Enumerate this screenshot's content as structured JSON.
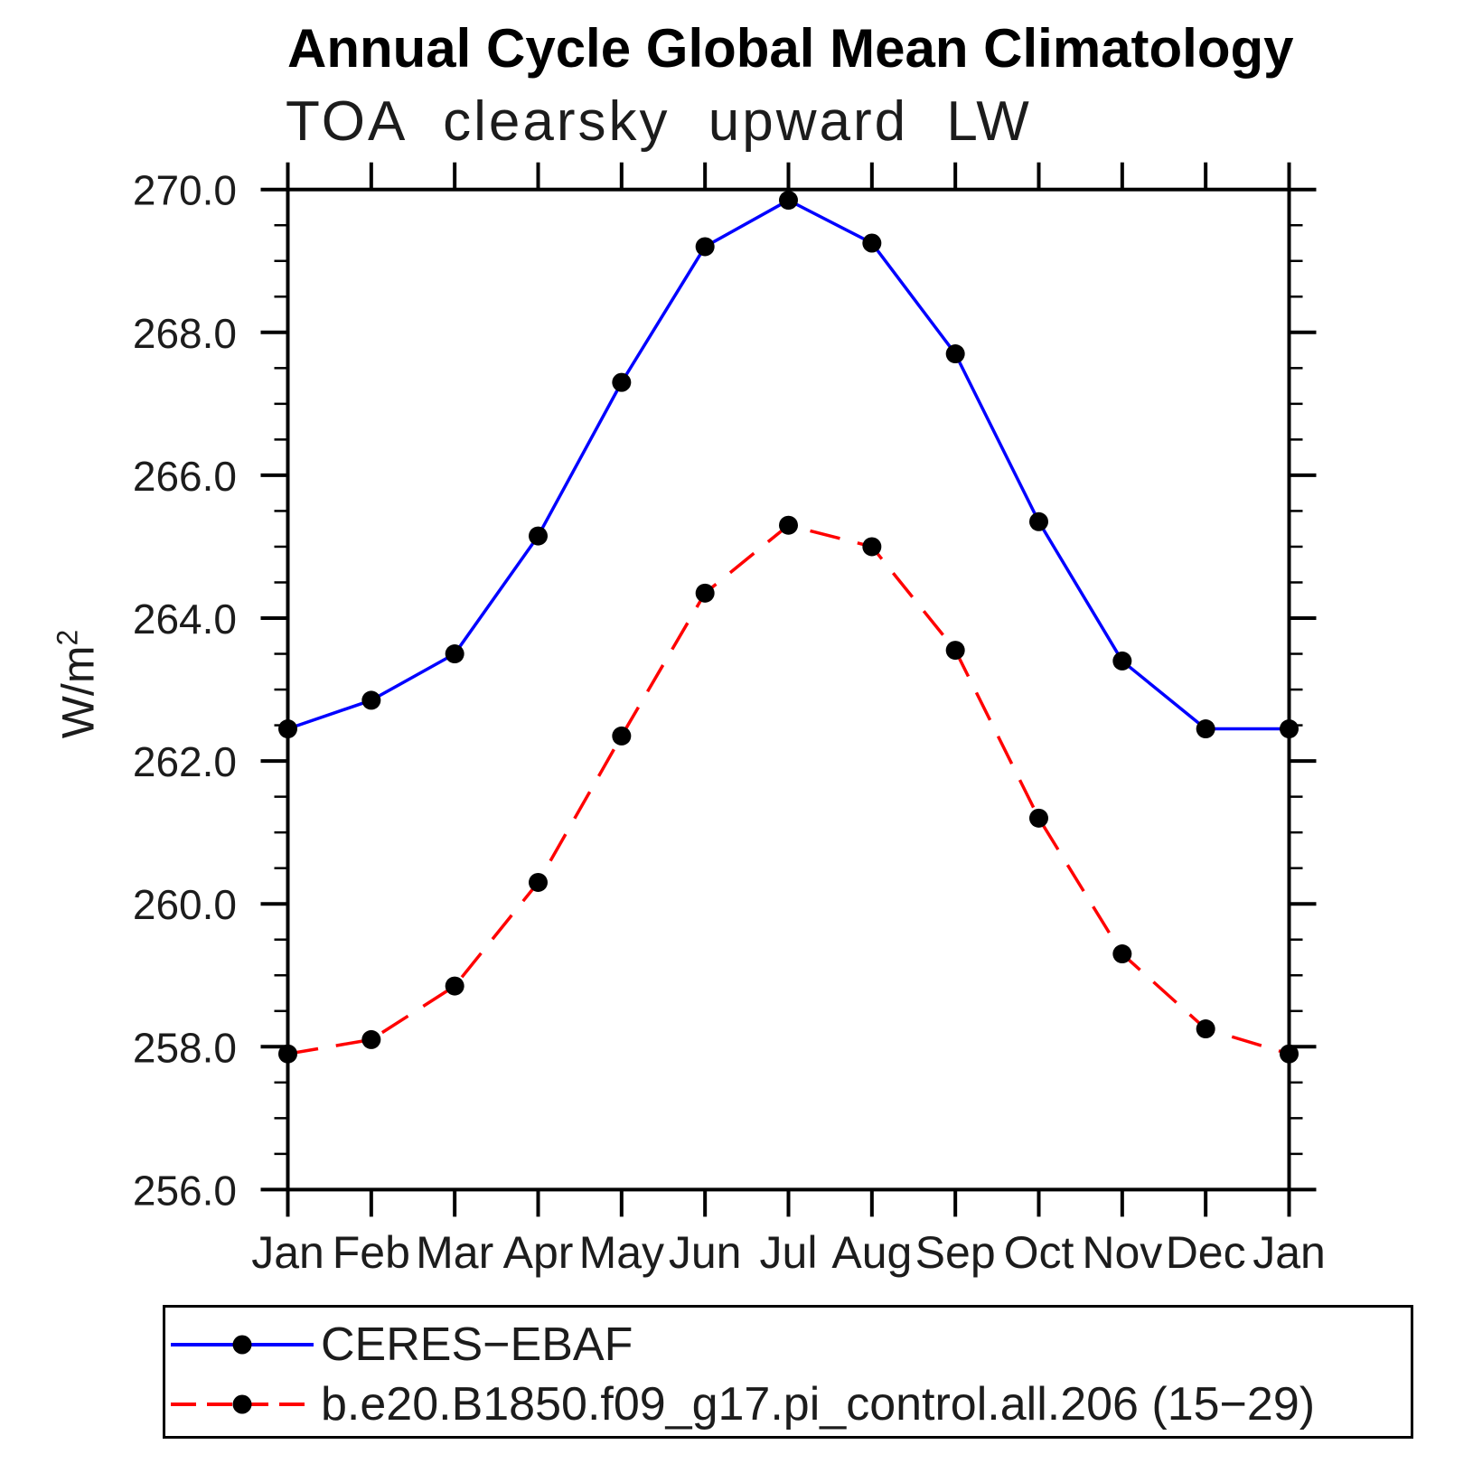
{
  "title": "Annual Cycle Global Mean Climatology",
  "subtitle": "TOA clearsky upward LW",
  "y_axis_title": {
    "base": "W/m",
    "exponent": "2"
  },
  "chart_data": {
    "type": "line",
    "title": "Annual Cycle Global Mean Climatology",
    "subtitle": "TOA clearsky upward LW",
    "xlabel": "",
    "ylabel": "W/m^2",
    "categories": [
      "Jan",
      "Feb",
      "Mar",
      "Apr",
      "May",
      "Jun",
      "Jul",
      "Aug",
      "Sep",
      "Oct",
      "Nov",
      "Dec",
      "Jan"
    ],
    "ylim": [
      256.0,
      270.0
    ],
    "ytick_major_step": 2.0,
    "ytick_minor_step": 0.5,
    "ytick_label_format": "one-decimal",
    "grid": false,
    "legend_position": "bottom-left-boxed",
    "frame_color": "#000000",
    "series": [
      {
        "name": "CERES−EBAF",
        "color": "#0000ff",
        "line_style": "solid",
        "marker": "filled-circle",
        "marker_color": "#000000",
        "values": [
          262.45,
          262.85,
          263.5,
          265.15,
          267.3,
          269.2,
          269.85,
          269.25,
          267.7,
          265.35,
          263.4,
          262.45,
          262.45
        ]
      },
      {
        "name": "b.e20.B1850.f09_g17.pi_control.all.206 (15−29)",
        "color": "#ff0000",
        "line_style": "dashed",
        "marker": "filled-circle",
        "marker_color": "#000000",
        "values": [
          257.9,
          258.1,
          258.85,
          260.3,
          262.35,
          264.35,
          265.3,
          265.0,
          263.55,
          261.2,
          259.3,
          258.25,
          257.9
        ]
      }
    ]
  }
}
